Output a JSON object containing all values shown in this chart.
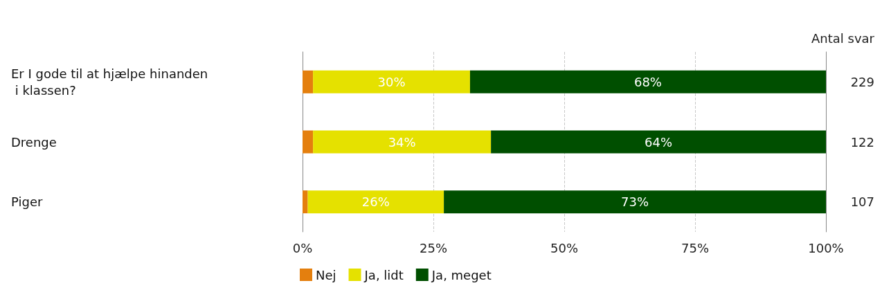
{
  "chart_data": {
    "type": "bar",
    "orientation": "horizontal",
    "stacked": true,
    "categories": [
      "Er I gode til at hjælpe hinanden i klassen?",
      "Drenge",
      "Piger"
    ],
    "y2label": "Antal svar",
    "y2_categories": [
      "229",
      "122",
      "107"
    ],
    "series": [
      {
        "name": "Nej",
        "color": "#e47f0e",
        "values": [
          2,
          2,
          1
        ],
        "value_labels": [
          null,
          null,
          null
        ]
      },
      {
        "name": "Ja, lidt",
        "color": "#e5e100",
        "values": [
          30,
          34,
          26
        ],
        "value_labels": [
          "30%",
          "34%",
          "26%"
        ]
      },
      {
        "name": "Ja, meget",
        "color": "#004f00",
        "values": [
          68,
          64,
          73
        ],
        "value_labels": [
          "68%",
          "64%",
          "73%"
        ]
      }
    ],
    "xlim": [
      0,
      100
    ],
    "xticks": [
      {
        "value": 0,
        "label": "0%"
      },
      {
        "value": 25,
        "label": "25%"
      },
      {
        "value": 50,
        "label": "50%"
      },
      {
        "value": 75,
        "label": "75%"
      },
      {
        "value": 100,
        "label": "100%"
      }
    ],
    "grid": "x",
    "legend": "bottom"
  }
}
